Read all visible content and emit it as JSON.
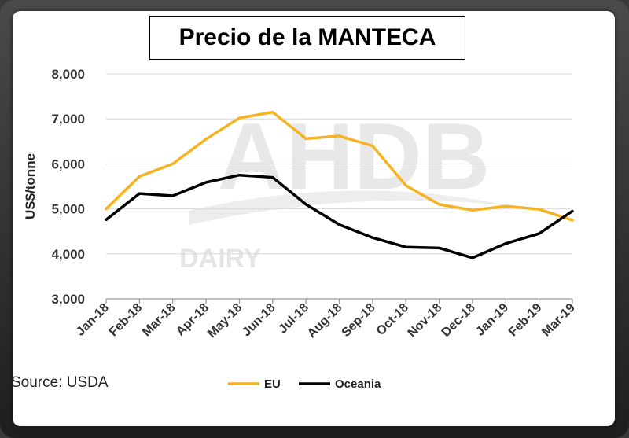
{
  "chart_data": {
    "type": "line",
    "title": "Precio de la MANTECA",
    "ylabel": "US$/tonne",
    "xlabel": "",
    "ylim": [
      3000,
      8000
    ],
    "yticks": [
      3000,
      4000,
      5000,
      6000,
      7000,
      8000
    ],
    "ytick_labels": [
      "3,000",
      "4,000",
      "5,000",
      "6,000",
      "7,000",
      "8,000"
    ],
    "categories": [
      "Jan-18",
      "Feb-18",
      "Mar-18",
      "Apr-18",
      "May-18",
      "Jun-18",
      "Jul-18",
      "Aug-18",
      "Sep-18",
      "Oct-18",
      "Nov-18",
      "Dec-18",
      "Jan-19",
      "Feb-19",
      "Mar-19"
    ],
    "grid": true,
    "legend_position": "bottom",
    "series": [
      {
        "name": "EU",
        "color": "#F5B324",
        "values": [
          5000,
          5720,
          6000,
          6550,
          7020,
          7150,
          6560,
          6620,
          6400,
          5520,
          5100,
          4970,
          5060,
          4990,
          4750
        ]
      },
      {
        "name": "Oceania",
        "color": "#000000",
        "values": [
          4760,
          5340,
          5290,
          5590,
          5750,
          5700,
          5100,
          4650,
          4360,
          4150,
          4130,
          3910,
          4230,
          4450,
          4950
        ]
      }
    ],
    "source": "Source: USDA",
    "watermark": "AHDB DAIRY"
  }
}
